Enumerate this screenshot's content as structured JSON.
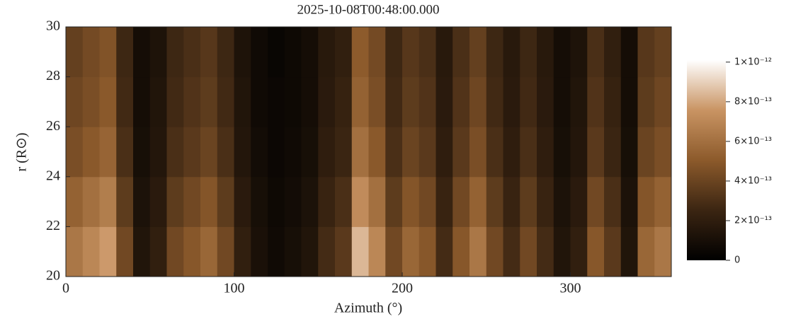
{
  "chart_data": {
    "type": "heatmap",
    "title": "2025-10-08T00:48:00.000",
    "xlabel": "Azimuth (°)",
    "ylabel": "r (R⊙)",
    "xbins": [
      0,
      10,
      20,
      30,
      40,
      50,
      60,
      70,
      80,
      90,
      100,
      110,
      120,
      130,
      140,
      150,
      160,
      170,
      180,
      190,
      200,
      210,
      220,
      230,
      240,
      250,
      260,
      270,
      280,
      290,
      300,
      310,
      320,
      330,
      340,
      350,
      360
    ],
    "ybins": [
      20,
      22,
      24,
      26,
      28,
      30
    ],
    "z": [
      [
        6.3e-13,
        7e-13,
        7.7e-13,
        4.2e-13,
        1.4e-13,
        2.1e-13,
        4.2e-13,
        4.9e-13,
        5.6e-13,
        4.2e-13,
        2.1e-13,
        1.1e-13,
        7e-14,
        1e-13,
        1.4e-13,
        2.8e-13,
        3.5e-13,
        8.4e-13,
        7e-13,
        4.2e-13,
        5.6e-13,
        4.9e-13,
        2.8e-13,
        4.9e-13,
        6.3e-13,
        4.2e-13,
        2.8e-13,
        4.2e-13,
        2.8e-13,
        1.4e-13,
        2.1e-13,
        4.9e-13,
        3.5e-13,
        1.4e-13,
        5.6e-13,
        6.3e-13
      ],
      [
        5.4e-13,
        6e-13,
        6.6e-13,
        3.6e-13,
        1.2e-13,
        1.8e-13,
        3.6e-13,
        4.2e-13,
        4.8e-13,
        3.6e-13,
        1.8e-13,
        1e-13,
        6e-14,
        8e-14,
        1.2e-13,
        2.4e-13,
        3e-13,
        7.2e-13,
        6e-13,
        3.6e-13,
        4.8e-13,
        4.2e-13,
        2.4e-13,
        4.2e-13,
        5.4e-13,
        3.6e-13,
        2.4e-13,
        3.6e-13,
        2.4e-13,
        1.2e-13,
        1.8e-13,
        4.2e-13,
        3e-13,
        1.2e-13,
        4.8e-13,
        5.4e-13
      ],
      [
        4.5e-13,
        5e-13,
        5.5e-13,
        3e-13,
        1e-13,
        1.5e-13,
        3e-13,
        3.5e-13,
        4e-13,
        3e-13,
        1.5e-13,
        8e-14,
        5e-14,
        7e-14,
        1e-13,
        2e-13,
        2.5e-13,
        6e-13,
        5e-13,
        3e-13,
        4e-13,
        3.5e-13,
        2e-13,
        3.5e-13,
        4.5e-13,
        3e-13,
        2e-13,
        3e-13,
        2e-13,
        1e-13,
        1.5e-13,
        3.5e-13,
        2.5e-13,
        1e-13,
        4e-13,
        4.5e-13
      ],
      [
        4.1e-13,
        4.5e-13,
        5e-13,
        2.7e-13,
        9e-14,
        1.4e-13,
        2.7e-13,
        3.2e-13,
        3.6e-13,
        2.7e-13,
        1.4e-13,
        7e-14,
        5e-14,
        6e-14,
        9e-14,
        1.8e-13,
        2.3e-13,
        5.4e-13,
        4.5e-13,
        2.7e-13,
        3.6e-13,
        3.2e-13,
        1.8e-13,
        3.2e-13,
        4.1e-13,
        2.7e-13,
        1.8e-13,
        2.7e-13,
        1.8e-13,
        9e-14,
        1.4e-13,
        3.2e-13,
        2.3e-13,
        9e-14,
        3.6e-13,
        4.1e-13
      ],
      [
        3.8e-13,
        4.3e-13,
        4.7e-13,
        2.6e-13,
        9e-14,
        1.3e-13,
        2.6e-13,
        3e-13,
        3.4e-13,
        2.6e-13,
        1.3e-13,
        7e-14,
        4e-14,
        6e-14,
        9e-14,
        1.7e-13,
        2.1e-13,
        5.1e-13,
        4.3e-13,
        2.6e-13,
        3.4e-13,
        3e-13,
        1.7e-13,
        3e-13,
        3.8e-13,
        2.6e-13,
        1.7e-13,
        2.6e-13,
        1.7e-13,
        9e-14,
        1.3e-13,
        3e-13,
        2.1e-13,
        9e-14,
        3.4e-13,
        3.8e-13
      ]
    ],
    "xlim": [
      0,
      360
    ],
    "xticks": [
      0,
      100,
      200,
      300
    ],
    "ylim": [
      20,
      30
    ],
    "yticks": [
      20,
      22,
      24,
      26,
      28,
      30
    ],
    "clim": [
      0,
      1.01e-12
    ],
    "cticks": [
      0,
      {
        "value": 2e-13,
        "label": "2×10⁻¹³"
      },
      {
        "value": 4e-13,
        "label": "4×10⁻¹³"
      },
      {
        "value": 6e-13,
        "label": "6×10⁻¹³"
      },
      {
        "value": 8e-13,
        "label": "8×10⁻¹³"
      },
      {
        "value": 1e-12,
        "label": "1×10⁻¹²"
      }
    ],
    "colormap": [
      "#000000",
      "#3b2512",
      "#8c5a2b",
      "#c99463",
      "#ffffff"
    ]
  }
}
